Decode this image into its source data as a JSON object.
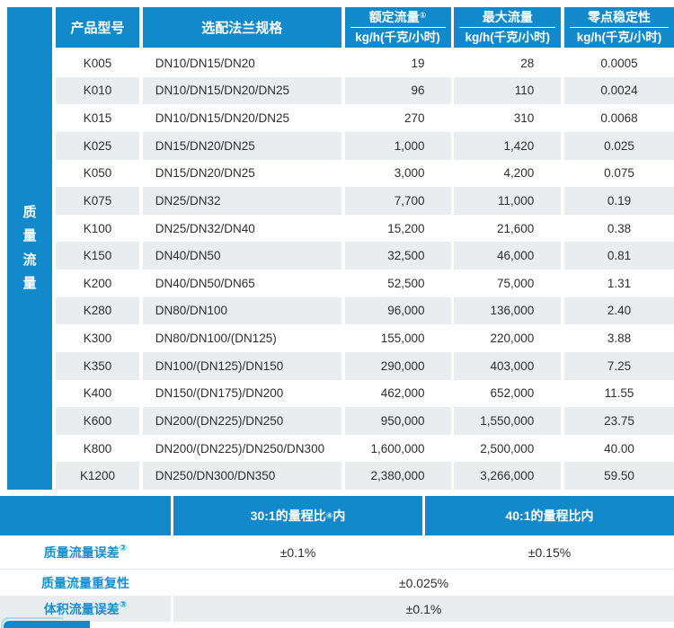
{
  "colors": {
    "accent_blue": "#1189cb",
    "alt_row": "#e9edf0",
    "label_blue": "#1590d0"
  },
  "sidebar": {
    "label": "质量流量"
  },
  "table": {
    "headers": {
      "model": "产品型号",
      "flange": "选配法兰规格",
      "rated_title": "额定流量",
      "rated_sup": "①",
      "rated_unit": "kg/h(千克/小时)",
      "max_title": "最大流量",
      "max_unit": "kg/h(千克/小时)",
      "zero_title": "零点稳定性",
      "zero_unit": "kg/h(千克/小时)"
    },
    "rows": [
      {
        "model": "K005",
        "flange": "DN10/DN15/DN20",
        "rated": "19",
        "max": "28",
        "zero": "0.0005"
      },
      {
        "model": "K010",
        "flange": "DN10/DN15/DN20/DN25",
        "rated": "96",
        "max": "110",
        "zero": "0.0024"
      },
      {
        "model": "K015",
        "flange": "DN10/DN15/DN20/DN25",
        "rated": "270",
        "max": "310",
        "zero": "0.0068"
      },
      {
        "model": "K025",
        "flange": "DN15/DN20/DN25",
        "rated": "1,000",
        "max": "1,420",
        "zero": "0.025"
      },
      {
        "model": "K050",
        "flange": "DN15/DN20/DN25",
        "rated": "3,000",
        "max": "4,200",
        "zero": "0.075"
      },
      {
        "model": "K075",
        "flange": "DN25/DN32",
        "rated": "7,700",
        "max": "11,000",
        "zero": "0.19"
      },
      {
        "model": "K100",
        "flange": "DN25/DN32/DN40",
        "rated": "15,200",
        "max": "21,600",
        "zero": "0.38"
      },
      {
        "model": "K150",
        "flange": "DN40/DN50",
        "rated": "32,500",
        "max": "46,000",
        "zero": "0.81"
      },
      {
        "model": "K200",
        "flange": "DN40/DN50/DN65",
        "rated": "52,500",
        "max": "75,000",
        "zero": "1.31"
      },
      {
        "model": "K280",
        "flange": "DN80/DN100",
        "rated": "96,000",
        "max": "136,000",
        "zero": "2.40"
      },
      {
        "model": "K300",
        "flange": "DN80/DN100/(DN125)",
        "rated": "155,000",
        "max": "220,000",
        "zero": "3.88"
      },
      {
        "model": "K350",
        "flange": "DN100/(DN125)/DN150",
        "rated": "290,000",
        "max": "403,000",
        "zero": "7.25"
      },
      {
        "model": "K400",
        "flange": "DN150/(DN175)/DN200",
        "rated": "462,000",
        "max": "652,000",
        "zero": "11.55"
      },
      {
        "model": "K600",
        "flange": "DN200/(DN225)/DN250",
        "rated": "950,000",
        "max": "1,550,000",
        "zero": "23.75"
      },
      {
        "model": "K800",
        "flange": "DN200/(DN225)/DN250/DN300",
        "rated": "1,600,000",
        "max": "2,500,000",
        "zero": "40.00"
      },
      {
        "model": "K1200",
        "flange": "DN250/DN300/DN350",
        "rated": "2,380,000",
        "max": "3,266,000",
        "zero": "59.50"
      }
    ]
  },
  "footer": {
    "range_left": {
      "text": "30:1的量程比",
      "sup": "④",
      "suffix": "内"
    },
    "range_right": "40:1的量程比内",
    "mass_error": {
      "label": "质量流量误差",
      "sup": "②",
      "value_30": "±0.1%",
      "value_40": "±0.15%"
    },
    "repeatability": {
      "label": "质量流量重复性",
      "value": "±0.025%"
    },
    "volume_error": {
      "label": "体积流量误差",
      "sup": "③",
      "value": "±0.1%"
    }
  }
}
